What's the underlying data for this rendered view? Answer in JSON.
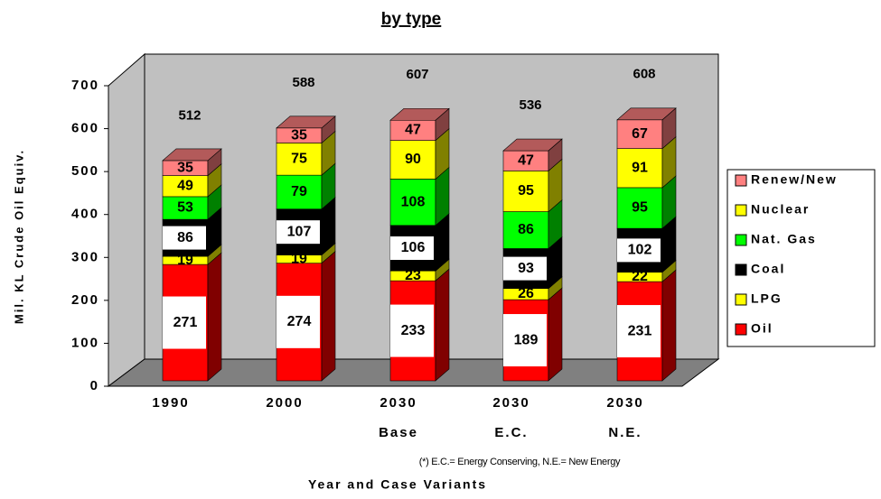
{
  "chart_data": {
    "type": "stacked_bar_3d",
    "title": "by type",
    "y_label": "Mil. KL Crude Oil Equiv.",
    "x_label": "Year and Case Variants",
    "note": "(*) E.C.= Energy Conserving, N.E.= New Energy",
    "categories": [
      "1990",
      "2000",
      "2030\nBase",
      "2030\nE.C.",
      "2030\nN.E."
    ],
    "series": [
      {
        "name": "Oil",
        "color": "#ff0000",
        "label_bg": "#ffffff",
        "values": [
          271,
          274,
          233,
          189,
          231
        ]
      },
      {
        "name": "LPG",
        "color": "#ffff00",
        "values": [
          19,
          19,
          23,
          26,
          22
        ]
      },
      {
        "name": "Coal",
        "color": "#000000",
        "label_bg": "#ffffff",
        "values": [
          86,
          107,
          106,
          93,
          102
        ]
      },
      {
        "name": "Nat. Gas",
        "color": "#00ff00",
        "values": [
          53,
          79,
          108,
          86,
          95
        ]
      },
      {
        "name": "Nuclear",
        "color": "#ffff00",
        "values": [
          49,
          75,
          90,
          95,
          91
        ]
      },
      {
        "name": "Renew/New",
        "color": "#ff8080",
        "values": [
          35,
          35,
          47,
          47,
          67
        ]
      }
    ],
    "totals": [
      512,
      588,
      607,
      536,
      608
    ],
    "ylim": [
      0,
      700
    ],
    "yticks": [
      0,
      100,
      200,
      300,
      400,
      500,
      600,
      700
    ],
    "legend": "right"
  }
}
